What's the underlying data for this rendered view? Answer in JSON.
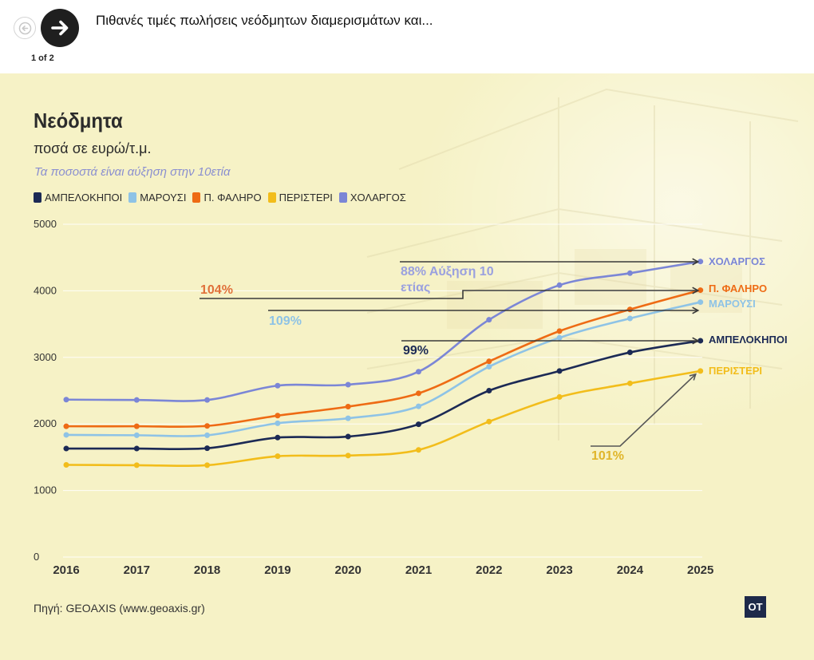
{
  "header": {
    "title": "Πιθανές τιμές πωλήσεις νεόδμητων διαμερισμάτων και...",
    "counter": "1 of 2"
  },
  "icons": {
    "prev": "arrow-left-icon",
    "next": "arrow-right-icon"
  },
  "footer": {
    "source": "Πηγή: GEOAXIS (www.geoaxis.gr)",
    "brand": "OT"
  },
  "colors": {
    "background": "#f6f2c6",
    "ampelokipoi": "#1c2a55",
    "marousi": "#8ec3e6",
    "faliro": "#ee6b14",
    "peristeri": "#f2bd1b",
    "cholargos": "#7b86d6"
  },
  "chart_data": {
    "type": "line",
    "title": "Νεόδμητα",
    "subtitle": "ποσά σε ευρώ/τ.μ.",
    "note": "Τα ποσοστά είναι αύξηση στην 10ετία",
    "x": [
      "2016",
      "2017",
      "2018",
      "2019",
      "2020",
      "2021",
      "2022",
      "2023",
      "2024",
      "2025"
    ],
    "ylim": [
      0,
      5000
    ],
    "yticks": [
      "0",
      "1000",
      "2000",
      "3000",
      "4000",
      "5000"
    ],
    "legend_position": "top-left",
    "series": [
      {
        "name": "ΑΜΠΕΛΟΚΗΠΟΙ",
        "end_label": "ΑΜΠΕΛΟΚΗΠΟΙ",
        "color": "#1c2a55",
        "values": [
          1630,
          1630,
          1635,
          1795,
          1810,
          1995,
          2500,
          2795,
          3075,
          3250
        ],
        "annotation": "99%"
      },
      {
        "name": "ΜΑΡΟΥΣΙ",
        "end_label": "ΜΑΡΟΥΣΙ",
        "color": "#8ec3e6",
        "values": [
          1835,
          1830,
          1830,
          2010,
          2085,
          2265,
          2860,
          3295,
          3585,
          3830
        ],
        "annotation": "109%"
      },
      {
        "name": "Π. ΦΑΛΗΡΟ",
        "end_label": "Π. ΦΑΛΗΡΟ",
        "color": "#ee6b14",
        "values": [
          1965,
          1965,
          1970,
          2125,
          2260,
          2460,
          2940,
          3395,
          3720,
          4010
        ],
        "annotation": "104%"
      },
      {
        "name": "ΠΕΡΙΣΤΕΡΙ",
        "end_label": "ΠΕΡΙΣΤΕΡΙ",
        "color": "#f2bd1b",
        "values": [
          1385,
          1380,
          1380,
          1515,
          1525,
          1610,
          2035,
          2405,
          2610,
          2795
        ],
        "annotation": "101%"
      },
      {
        "name": "ΧΟΛΑΡΓΟΣ",
        "end_label": "ΧΟΛΑΡΓΟΣ",
        "color": "#7b86d6",
        "values": [
          2365,
          2360,
          2360,
          2575,
          2590,
          2785,
          3565,
          4085,
          4265,
          4440
        ],
        "annotation": "88% Αύξηση 10 ετίας"
      }
    ]
  }
}
